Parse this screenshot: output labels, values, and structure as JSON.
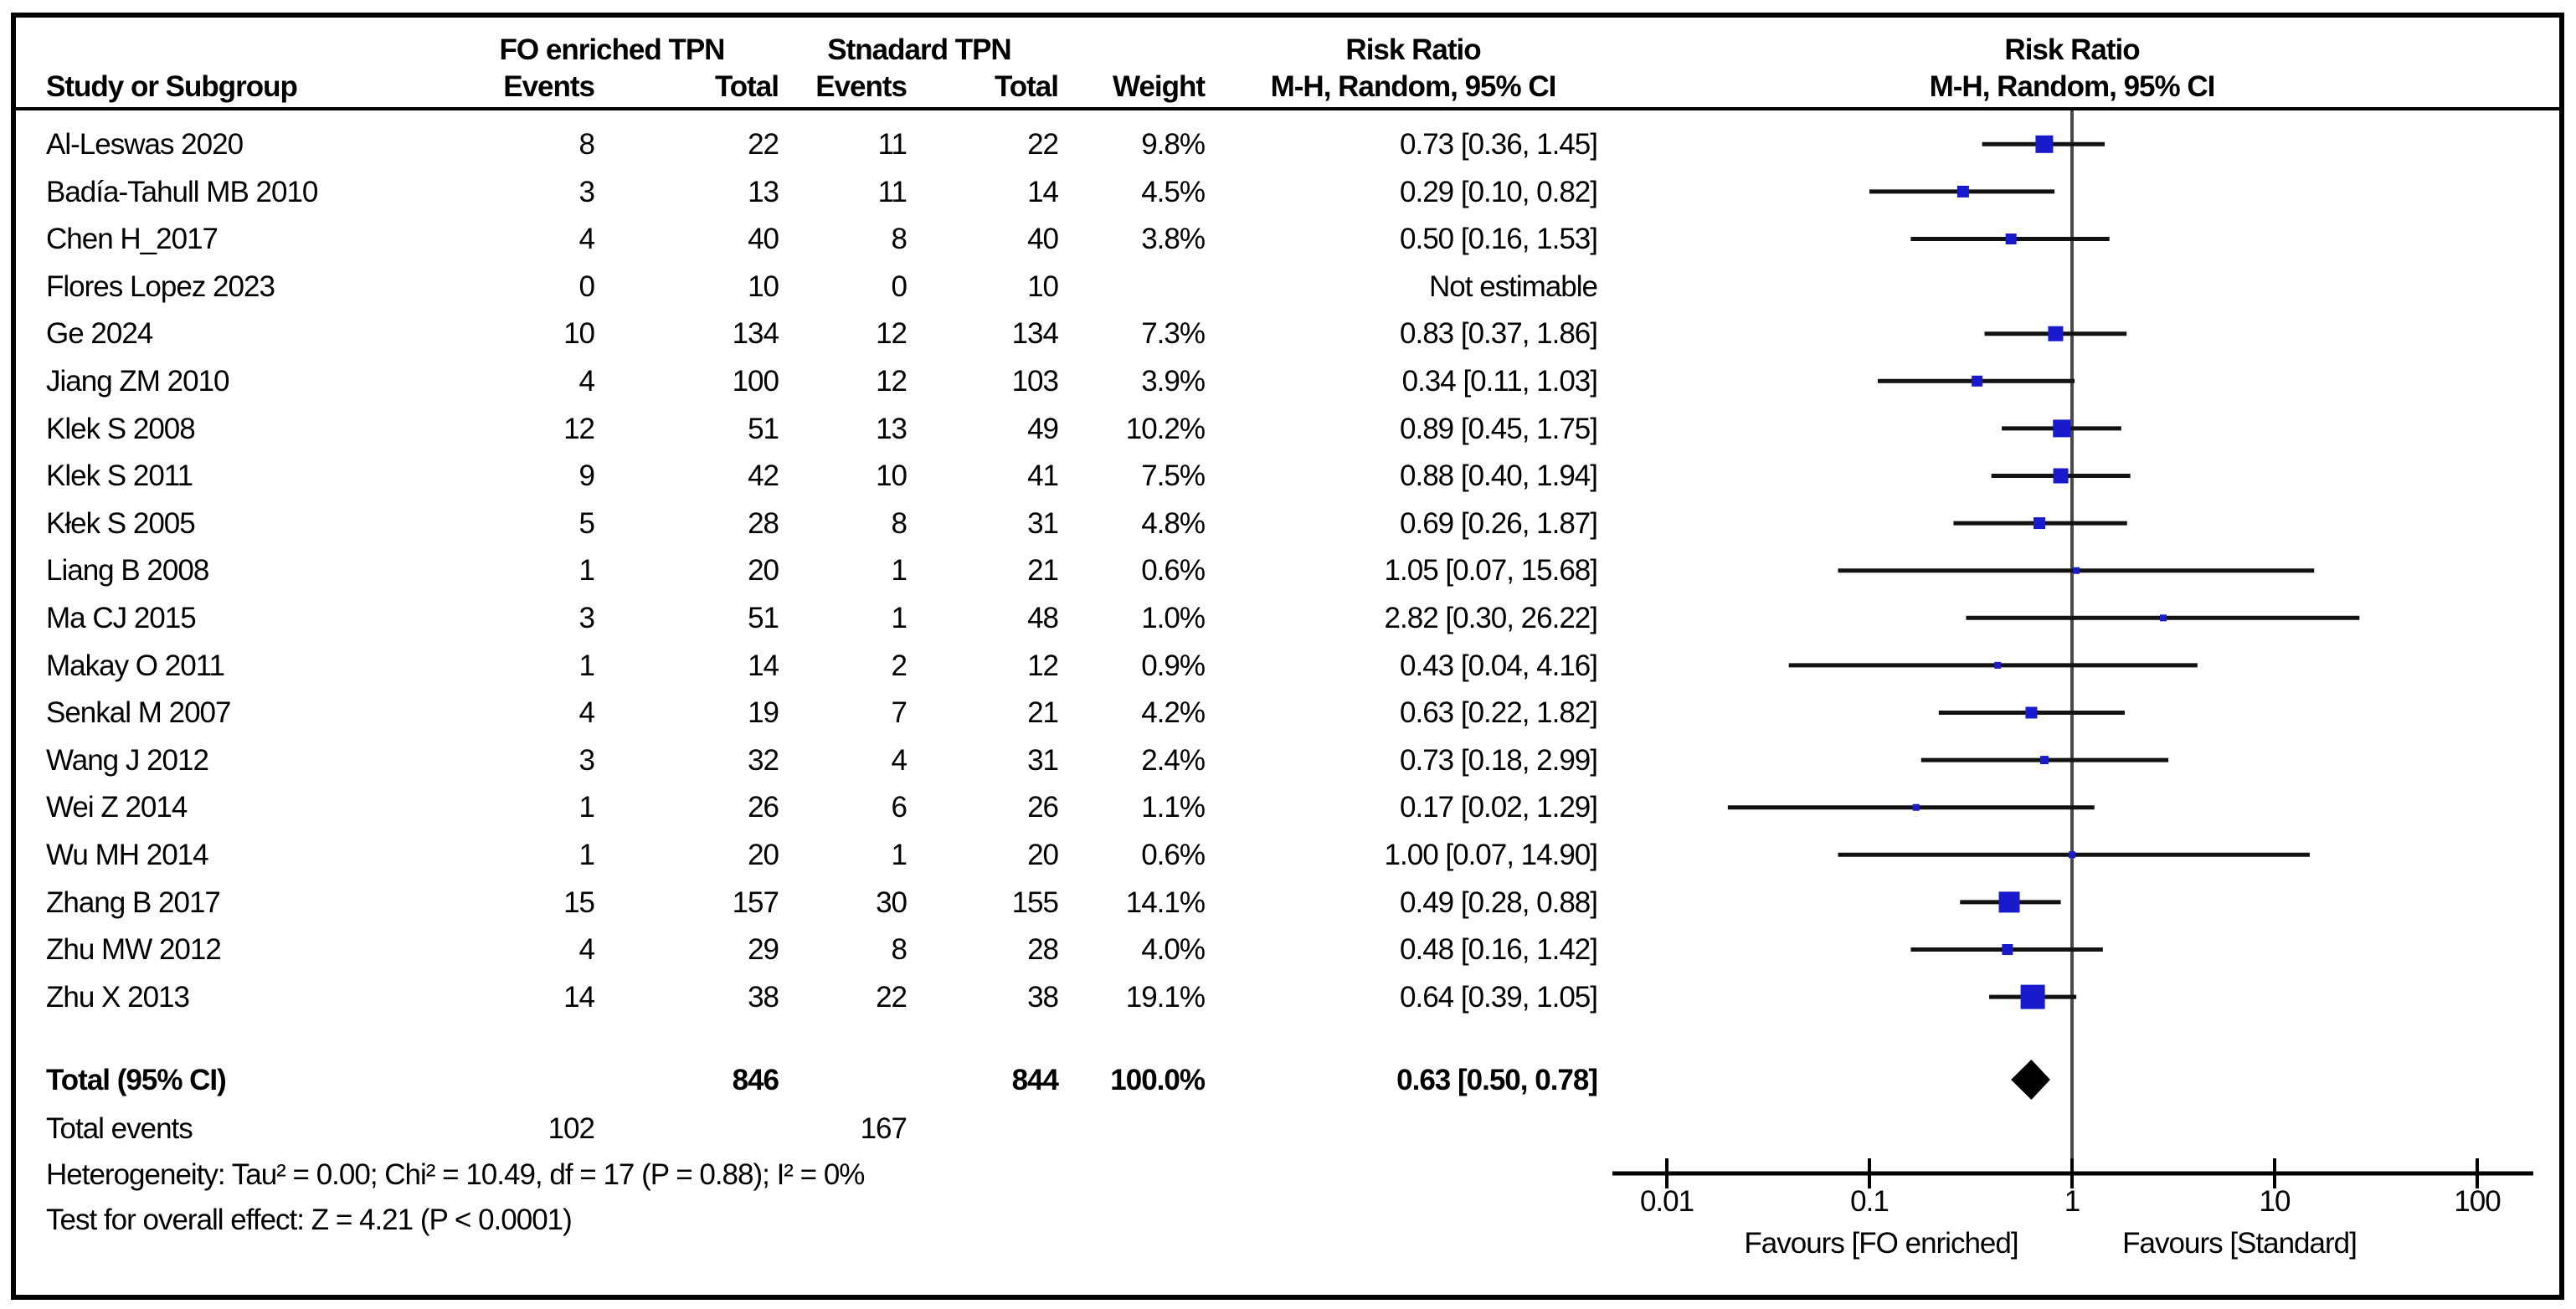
{
  "header": {
    "col_study": "Study or Subgroup",
    "group1": "FO enriched TPN",
    "group2": "Stnadard TPN",
    "col_events": "Events",
    "col_total": "Total",
    "col_weight": "Weight",
    "risk_ratio": "Risk Ratio",
    "method": "M-H, Random, 95% CI"
  },
  "chart_data": {
    "type": "forest",
    "x_scale": "log10",
    "x_ticks": [
      0.01,
      0.1,
      1,
      10,
      100
    ],
    "x_axis_range": [
      0.005,
      200
    ],
    "null_line": 1,
    "marker_color": "#1A1ACD",
    "ci_color": "#121212",
    "studies": [
      {
        "name": "Al-Leswas 2020",
        "fo_events": 8,
        "fo_total": 22,
        "std_events": 11,
        "std_total": 22,
        "weight": "9.8%",
        "weight_value": 9.8,
        "rr": 0.73,
        "ci_low": 0.36,
        "ci_high": 1.45,
        "rr_text": "0.73 [0.36, 1.45]"
      },
      {
        "name": "Badía-Tahull MB 2010",
        "fo_events": 3,
        "fo_total": 13,
        "std_events": 11,
        "std_total": 14,
        "weight": "4.5%",
        "weight_value": 4.5,
        "rr": 0.29,
        "ci_low": 0.1,
        "ci_high": 0.82,
        "rr_text": "0.29 [0.10, 0.82]"
      },
      {
        "name": "Chen H_2017",
        "fo_events": 4,
        "fo_total": 40,
        "std_events": 8,
        "std_total": 40,
        "weight": "3.8%",
        "weight_value": 3.8,
        "rr": 0.5,
        "ci_low": 0.16,
        "ci_high": 1.53,
        "rr_text": "0.50 [0.16, 1.53]"
      },
      {
        "name": "Flores Lopez 2023",
        "fo_events": 0,
        "fo_total": 10,
        "std_events": 0,
        "std_total": 10,
        "weight": "",
        "weight_value": 0,
        "rr": null,
        "ci_low": null,
        "ci_high": null,
        "rr_text": "Not estimable"
      },
      {
        "name": "Ge 2024",
        "fo_events": 10,
        "fo_total": 134,
        "std_events": 12,
        "std_total": 134,
        "weight": "7.3%",
        "weight_value": 7.3,
        "rr": 0.83,
        "ci_low": 0.37,
        "ci_high": 1.86,
        "rr_text": "0.83 [0.37, 1.86]"
      },
      {
        "name": "Jiang ZM 2010",
        "fo_events": 4,
        "fo_total": 100,
        "std_events": 12,
        "std_total": 103,
        "weight": "3.9%",
        "weight_value": 3.9,
        "rr": 0.34,
        "ci_low": 0.11,
        "ci_high": 1.03,
        "rr_text": "0.34 [0.11, 1.03]"
      },
      {
        "name": "Klek S 2008",
        "fo_events": 12,
        "fo_total": 51,
        "std_events": 13,
        "std_total": 49,
        "weight": "10.2%",
        "weight_value": 10.2,
        "rr": 0.89,
        "ci_low": 0.45,
        "ci_high": 1.75,
        "rr_text": "0.89 [0.45, 1.75]"
      },
      {
        "name": "Klek S 2011",
        "fo_events": 9,
        "fo_total": 42,
        "std_events": 10,
        "std_total": 41,
        "weight": "7.5%",
        "weight_value": 7.5,
        "rr": 0.88,
        "ci_low": 0.4,
        "ci_high": 1.94,
        "rr_text": "0.88 [0.40, 1.94]"
      },
      {
        "name": "Kłek S 2005",
        "fo_events": 5,
        "fo_total": 28,
        "std_events": 8,
        "std_total": 31,
        "weight": "4.8%",
        "weight_value": 4.8,
        "rr": 0.69,
        "ci_low": 0.26,
        "ci_high": 1.87,
        "rr_text": "0.69 [0.26, 1.87]"
      },
      {
        "name": "Liang B 2008",
        "fo_events": 1,
        "fo_total": 20,
        "std_events": 1,
        "std_total": 21,
        "weight": "0.6%",
        "weight_value": 0.6,
        "rr": 1.05,
        "ci_low": 0.07,
        "ci_high": 15.68,
        "rr_text": "1.05 [0.07, 15.68]"
      },
      {
        "name": "Ma CJ 2015",
        "fo_events": 3,
        "fo_total": 51,
        "std_events": 1,
        "std_total": 48,
        "weight": "1.0%",
        "weight_value": 1.0,
        "rr": 2.82,
        "ci_low": 0.3,
        "ci_high": 26.22,
        "rr_text": "2.82 [0.30, 26.22]"
      },
      {
        "name": "Makay O 2011",
        "fo_events": 1,
        "fo_total": 14,
        "std_events": 2,
        "std_total": 12,
        "weight": "0.9%",
        "weight_value": 0.9,
        "rr": 0.43,
        "ci_low": 0.04,
        "ci_high": 4.16,
        "rr_text": "0.43 [0.04, 4.16]"
      },
      {
        "name": "Senkal M 2007",
        "fo_events": 4,
        "fo_total": 19,
        "std_events": 7,
        "std_total": 21,
        "weight": "4.2%",
        "weight_value": 4.2,
        "rr": 0.63,
        "ci_low": 0.22,
        "ci_high": 1.82,
        "rr_text": "0.63 [0.22, 1.82]"
      },
      {
        "name": "Wang J 2012",
        "fo_events": 3,
        "fo_total": 32,
        "std_events": 4,
        "std_total": 31,
        "weight": "2.4%",
        "weight_value": 2.4,
        "rr": 0.73,
        "ci_low": 0.18,
        "ci_high": 2.99,
        "rr_text": "0.73 [0.18, 2.99]"
      },
      {
        "name": "Wei Z 2014",
        "fo_events": 1,
        "fo_total": 26,
        "std_events": 6,
        "std_total": 26,
        "weight": "1.1%",
        "weight_value": 1.1,
        "rr": 0.17,
        "ci_low": 0.02,
        "ci_high": 1.29,
        "rr_text": "0.17 [0.02, 1.29]"
      },
      {
        "name": "Wu MH 2014",
        "fo_events": 1,
        "fo_total": 20,
        "std_events": 1,
        "std_total": 20,
        "weight": "0.6%",
        "weight_value": 0.6,
        "rr": 1.0,
        "ci_low": 0.07,
        "ci_high": 14.9,
        "rr_text": "1.00 [0.07, 14.90]"
      },
      {
        "name": "Zhang B 2017",
        "fo_events": 15,
        "fo_total": 157,
        "std_events": 30,
        "std_total": 155,
        "weight": "14.1%",
        "weight_value": 14.1,
        "rr": 0.49,
        "ci_low": 0.28,
        "ci_high": 0.88,
        "rr_text": "0.49 [0.28, 0.88]"
      },
      {
        "name": "Zhu MW 2012",
        "fo_events": 4,
        "fo_total": 29,
        "std_events": 8,
        "std_total": 28,
        "weight": "4.0%",
        "weight_value": 4.0,
        "rr": 0.48,
        "ci_low": 0.16,
        "ci_high": 1.42,
        "rr_text": "0.48 [0.16, 1.42]"
      },
      {
        "name": "Zhu X 2013",
        "fo_events": 14,
        "fo_total": 38,
        "std_events": 22,
        "std_total": 38,
        "weight": "19.1%",
        "weight_value": 19.1,
        "rr": 0.64,
        "ci_low": 0.39,
        "ci_high": 1.05,
        "rr_text": "0.64 [0.39, 1.05]"
      }
    ],
    "total": {
      "label": "Total (95% CI)",
      "fo_total": 846,
      "std_total": 844,
      "weight": "100.0%",
      "rr": 0.63,
      "ci_low": 0.5,
      "ci_high": 0.78,
      "rr_text": "0.63 [0.50, 0.78]"
    },
    "total_events": {
      "label": "Total events",
      "fo": 102,
      "std": 167
    },
    "heterogeneity": "Heterogeneity: Tau² = 0.00; Chi² = 10.49, df = 17 (P = 0.88); I² = 0%",
    "overall_effect": "Test for overall effect: Z = 4.21 (P < 0.0001)",
    "favours_left": "Favours [FO enriched]",
    "favours_right": "Favours [Standard]"
  }
}
